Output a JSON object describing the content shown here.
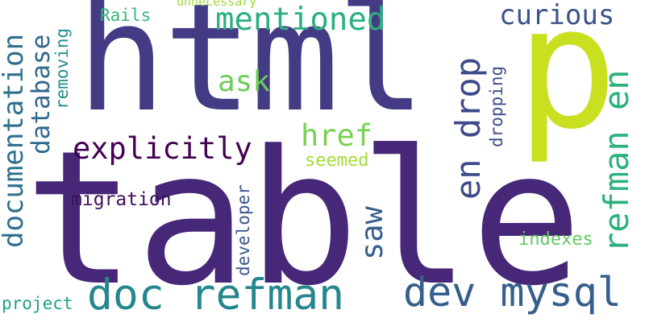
{
  "words": [
    {
      "text": "table",
      "color": "#472878"
    },
    {
      "text": "html",
      "color": "#433c84"
    },
    {
      "text": "p",
      "color": "#c8e020"
    },
    {
      "text": "doc refman",
      "color": "#24878e"
    },
    {
      "text": "dev mysql",
      "color": "#355e8d"
    },
    {
      "text": "refman en",
      "color": "#2db27d"
    },
    {
      "text": "en drop",
      "color": "#3e4989"
    },
    {
      "text": "mentioned",
      "color": "#2ab07f"
    },
    {
      "text": "explicitly",
      "color": "#440154"
    },
    {
      "text": "documentation",
      "color": "#2d708e"
    },
    {
      "text": "curious",
      "color": "#3b528b"
    },
    {
      "text": "href",
      "color": "#7ad151"
    },
    {
      "text": "database",
      "color": "#30688e"
    },
    {
      "text": "ask",
      "color": "#6ccd5a"
    },
    {
      "text": "saw",
      "color": "#355f8d"
    },
    {
      "text": "migration",
      "color": "#3d0f5a"
    },
    {
      "text": "indexes",
      "color": "#5ec962"
    },
    {
      "text": "seemed",
      "color": "#a5db36"
    },
    {
      "text": "developer",
      "color": "#39568c"
    },
    {
      "text": "project",
      "color": "#1fa187"
    },
    {
      "text": "removing",
      "color": "#218e8d"
    },
    {
      "text": "dropping",
      "color": "#3e4c8a"
    },
    {
      "text": "Rails",
      "color": "#35b779"
    },
    {
      "text": "unnecessary",
      "color": "#a0da39"
    }
  ]
}
